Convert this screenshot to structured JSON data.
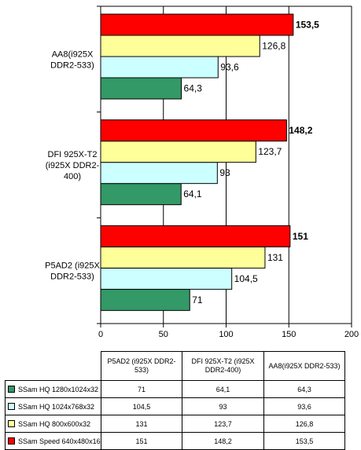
{
  "chart_data": {
    "type": "bar",
    "orientation": "horizontal",
    "categories": [
      "P5AD2 (i925X DDR2-533)",
      "DFI 925X-T2 (i925X DDR2-400)",
      "AA8(i925X DDR2-533)"
    ],
    "axis_labels": [
      "P5AD2 (i925X\nDDR2-533)",
      "DFI 925X-T2\n(i925X DDR2-\n400)",
      "AA8(i925X\nDDR2-533)"
    ],
    "table_headers": [
      "P5AD2 (i925X DDR2-\n533)",
      "DFI 925X-T2 (i925X\nDDR2-400)",
      "AA8(i925X DDR2-533)"
    ],
    "series": [
      {
        "name": "SSam  HQ  1280x1024x32",
        "color": "#339966",
        "values": [
          71,
          64.1,
          64.3
        ],
        "labels": [
          "71",
          "64,1",
          "64,3"
        ],
        "bold": false
      },
      {
        "name": "SSam  HQ  1024x768x32",
        "color": "#ccffff",
        "values": [
          104.5,
          93,
          93.6
        ],
        "labels": [
          "104,5",
          "93",
          "93,6"
        ],
        "bold": false
      },
      {
        "name": "SSam  HQ  800x600x32",
        "color": "#ffff99",
        "values": [
          131,
          123.7,
          126.8
        ],
        "labels": [
          "131",
          "123,7",
          "126,8"
        ],
        "bold": false
      },
      {
        "name": "SSam  Speed  640x480x16",
        "color": "#ff0000",
        "values": [
          151,
          148.2,
          153.5
        ],
        "labels": [
          "151",
          "148,2",
          "153,5"
        ],
        "bold": true
      }
    ],
    "xlim": [
      0,
      200
    ],
    "xticks": [
      0,
      50,
      100,
      150,
      200
    ],
    "xtick_labels": [
      "0",
      "50",
      "100",
      "150",
      "200"
    ],
    "grid": true,
    "legend": "data-table-below"
  }
}
